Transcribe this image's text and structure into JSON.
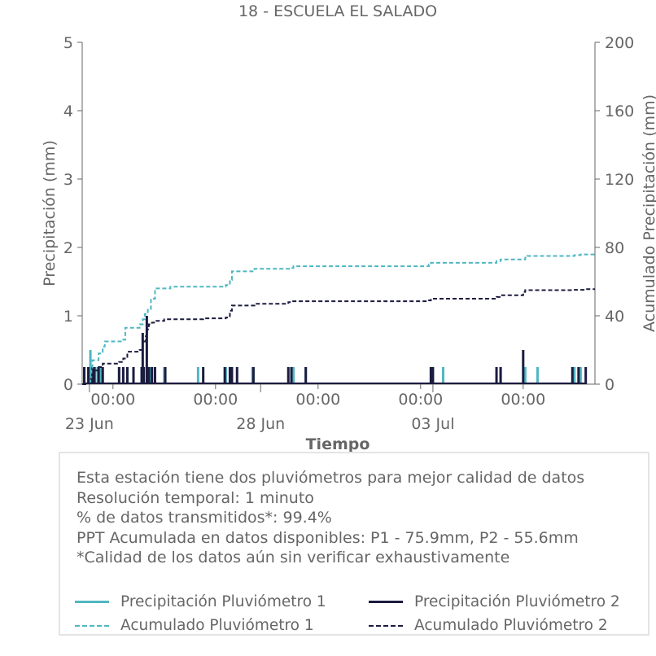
{
  "chart_data": {
    "type": "bar+line",
    "title": "18 - ESCUELA EL SALADO",
    "xlabel": "Tiempo",
    "ylabel_left": "Precipitación (mm)",
    "ylabel_right": "Acumulado Precipitación (mm)",
    "ylim_left": [
      0,
      5
    ],
    "ylim_right": [
      0,
      200
    ],
    "yticks_left": [
      "0",
      "1",
      "2",
      "3",
      "4",
      "5"
    ],
    "yticks_right": [
      "0",
      "40",
      "80",
      "120",
      "160",
      "200"
    ],
    "xlim_days": [
      0,
      25
    ],
    "xticks_minor": [
      {
        "day": 1.5,
        "label": "00:00"
      },
      {
        "day": 6.5,
        "label": "00:00"
      },
      {
        "day": 11.5,
        "label": "00:00"
      },
      {
        "day": 16.5,
        "label": "00:00"
      },
      {
        "day": 21.5,
        "label": "00:00"
      }
    ],
    "xticks_major": [
      {
        "day": 0.35,
        "label": "23 Jun"
      },
      {
        "day": 8.7,
        "label": "28 Jun"
      },
      {
        "day": 17.1,
        "label": "03 Jul"
      }
    ],
    "series": [
      {
        "name": "Precipitación Pluviómetro 1",
        "style": "bar",
        "axis": "left",
        "color": "#4fb7c1",
        "points": [
          [
            0.1,
            0.25
          ],
          [
            0.35,
            0.25
          ],
          [
            0.4,
            0.5
          ],
          [
            0.45,
            0.25
          ],
          [
            0.6,
            0.25
          ],
          [
            0.75,
            0.25
          ],
          [
            0.9,
            0.25
          ],
          [
            1.0,
            0.25
          ],
          [
            1.8,
            0.25
          ],
          [
            2.0,
            0.25
          ],
          [
            2.2,
            0.25
          ],
          [
            2.9,
            0.25
          ],
          [
            3.0,
            0.25
          ],
          [
            3.2,
            0.25
          ],
          [
            3.3,
            0.25
          ],
          [
            3.35,
            0.25
          ],
          [
            4.0,
            0.25
          ],
          [
            5.65,
            0.25
          ],
          [
            7.0,
            0.25
          ],
          [
            7.3,
            0.25
          ],
          [
            8.3,
            0.25
          ],
          [
            10.2,
            0.25
          ],
          [
            10.3,
            0.25
          ],
          [
            10.9,
            0.25
          ],
          [
            17.0,
            0.25
          ],
          [
            17.6,
            0.25
          ],
          [
            20.4,
            0.25
          ],
          [
            21.6,
            0.25
          ],
          [
            22.2,
            0.25
          ],
          [
            24.0,
            0.25
          ],
          [
            24.3,
            0.25
          ]
        ]
      },
      {
        "name": "Precipitación Pluviómetro 2",
        "style": "bar",
        "axis": "left",
        "color": "#1c1c40",
        "points": [
          [
            0.1,
            0.25
          ],
          [
            0.3,
            0.25
          ],
          [
            0.5,
            0.25
          ],
          [
            0.6,
            0.25
          ],
          [
            0.8,
            0.25
          ],
          [
            1.0,
            0.25
          ],
          [
            1.8,
            0.25
          ],
          [
            2.0,
            0.25
          ],
          [
            2.2,
            0.25
          ],
          [
            2.5,
            0.25
          ],
          [
            2.9,
            0.25
          ],
          [
            2.95,
            0.75
          ],
          [
            3.0,
            0.25
          ],
          [
            3.15,
            1.0
          ],
          [
            3.25,
            0.25
          ],
          [
            3.4,
            0.25
          ],
          [
            3.55,
            0.25
          ],
          [
            4.05,
            0.25
          ],
          [
            5.9,
            0.25
          ],
          [
            6.95,
            0.25
          ],
          [
            7.2,
            0.25
          ],
          [
            7.3,
            0.25
          ],
          [
            7.55,
            0.25
          ],
          [
            8.35,
            0.25
          ],
          [
            10.05,
            0.25
          ],
          [
            10.2,
            0.25
          ],
          [
            10.9,
            0.25
          ],
          [
            17.0,
            0.25
          ],
          [
            17.1,
            0.25
          ],
          [
            20.2,
            0.25
          ],
          [
            20.4,
            0.25
          ],
          [
            21.5,
            0.5
          ],
          [
            23.9,
            0.25
          ],
          [
            24.2,
            0.25
          ],
          [
            24.55,
            0.25
          ]
        ]
      },
      {
        "name": "Acumulado Pluviómetro 1",
        "style": "dashed-step",
        "axis": "right",
        "color": "#4fb7c1",
        "points": [
          [
            0,
            0
          ],
          [
            0.3,
            3
          ],
          [
            0.45,
            8
          ],
          [
            0.5,
            14
          ],
          [
            0.8,
            18
          ],
          [
            1.0,
            22
          ],
          [
            1.1,
            25
          ],
          [
            2.0,
            26
          ],
          [
            2.1,
            33
          ],
          [
            2.8,
            35
          ],
          [
            2.95,
            38
          ],
          [
            3.05,
            41
          ],
          [
            3.2,
            44
          ],
          [
            3.35,
            50
          ],
          [
            3.55,
            56
          ],
          [
            4.0,
            56
          ],
          [
            4.3,
            57
          ],
          [
            7.0,
            58
          ],
          [
            7.2,
            61
          ],
          [
            7.3,
            66
          ],
          [
            8.4,
            67.5
          ],
          [
            10.2,
            68
          ],
          [
            10.3,
            69
          ],
          [
            16.9,
            70
          ],
          [
            17.0,
            71
          ],
          [
            20.2,
            72
          ],
          [
            20.4,
            73
          ],
          [
            21.6,
            74
          ],
          [
            21.7,
            75
          ],
          [
            24.0,
            75.5
          ],
          [
            24.3,
            75.9
          ],
          [
            25,
            75.9
          ]
        ]
      },
      {
        "name": "Acumulado Pluviómetro 2",
        "style": "dashed-step",
        "axis": "right",
        "color": "#1c1c40",
        "points": [
          [
            0,
            0
          ],
          [
            0.3,
            3
          ],
          [
            0.5,
            6
          ],
          [
            0.6,
            8
          ],
          [
            0.8,
            10
          ],
          [
            1.0,
            12
          ],
          [
            1.8,
            13
          ],
          [
            2.0,
            15
          ],
          [
            2.2,
            19
          ],
          [
            2.8,
            20
          ],
          [
            2.95,
            25
          ],
          [
            3.1,
            28
          ],
          [
            3.15,
            32
          ],
          [
            3.25,
            35
          ],
          [
            3.4,
            36
          ],
          [
            3.5,
            37
          ],
          [
            4.0,
            38
          ],
          [
            5.9,
            38.5
          ],
          [
            7.0,
            39
          ],
          [
            7.2,
            43
          ],
          [
            7.3,
            46
          ],
          [
            8.4,
            47
          ],
          [
            10.05,
            48
          ],
          [
            10.2,
            48.5
          ],
          [
            16.9,
            49
          ],
          [
            17.0,
            50
          ],
          [
            20.2,
            51
          ],
          [
            20.4,
            52
          ],
          [
            21.5,
            54
          ],
          [
            21.6,
            55
          ],
          [
            23.9,
            55.2
          ],
          [
            24.55,
            55.6
          ],
          [
            25,
            55.6
          ]
        ]
      }
    ]
  },
  "info": {
    "line1": "Esta estación tiene dos pluviómetros para mejor calidad de datos",
    "line2": "Resolución temporal: 1 minuto",
    "line3": "% de datos transmitidos*: 99.4%",
    "line4": "PPT Acumulada en datos disponibles: P1 - 75.9mm, P2 - 55.6mm",
    "line5": "*Calidad de los datos aún sin verificar exhaustivamente"
  },
  "legend": {
    "item1": "Precipitación Pluviómetro 1",
    "item2": "Precipitación Pluviómetro 2",
    "item3": "Acumulado Pluviómetro 1",
    "item4": "Acumulado Pluviómetro 2"
  }
}
